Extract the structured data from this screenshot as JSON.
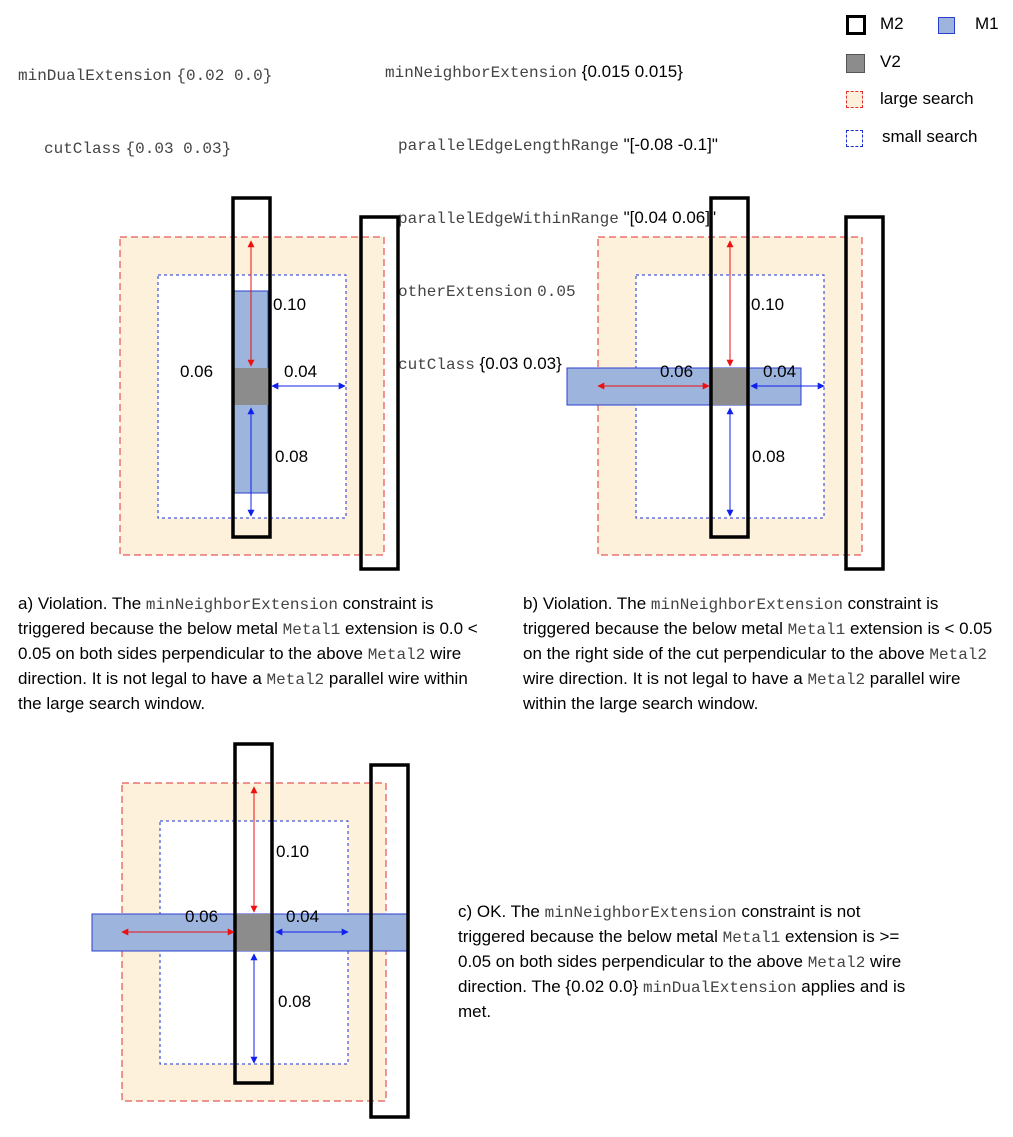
{
  "top_left_rule": {
    "line1_key": "minDualExtension",
    "line1_value": "{0.02 0.0}",
    "line2_key": "cutClass",
    "line2_value": "{0.03 0.03}"
  },
  "top_mid_rule": {
    "line1_key": "minNeighborExtension",
    "line1_value": "{0.015 0.015}",
    "line2_key": "parallelEdgeLengthRange",
    "line2_value": "\"[-0.08 -0.1]\"",
    "line3_key": "parallelEdgeWithinRange",
    "line3_value": "\"[0.04 0.06]\"",
    "line4_key": "otherExtension",
    "line4_value": "0.05",
    "line5_key": "cutClass",
    "line5_value": "{0.03 0.03}"
  },
  "legend": {
    "m2": "M2",
    "m1": "M1",
    "v2": "V2",
    "large_search": "large search",
    "small_search": "small search"
  },
  "colors": {
    "large_search_fill": "#fdf1dc",
    "large_search_border": "#e03030",
    "small_search_border": "#1a2fd0",
    "m1_fill": "#9db5dd",
    "m1_border": "#2a3fd0",
    "v2_fill": "#8c8c8c",
    "m2_border": "#000000",
    "arrow_red": "#ee1010",
    "arrow_blue": "#1020ee"
  },
  "diagram_a": {
    "label_top": "0.10",
    "label_left": "0.06",
    "label_right": "0.04",
    "label_bottom": "0.08"
  },
  "diagram_b": {
    "label_top": "0.10",
    "label_left": "0.06",
    "label_right": "0.04",
    "label_bottom": "0.08"
  },
  "diagram_c": {
    "label_top": "0.10",
    "label_left": "0.06",
    "label_right": "0.04",
    "label_bottom": "0.08"
  },
  "caption_a": {
    "p1": "a) Violation. The ",
    "code1": "minNeighborExtension",
    "p2": " constraint is triggered because the below metal ",
    "code2": "Metal1",
    "p3": " extension is 0.0 < 0.05 on both sides perpendicular to the above ",
    "code3": "Metal2",
    "p4": " wire direction. It is not legal to have a ",
    "code4": "Metal2",
    "p5": " parallel wire within the large search window."
  },
  "caption_b": {
    "p1": "b) Violation. The ",
    "code1": "minNeighborExtension",
    "p2": " constraint is triggered because the below metal ",
    "code2": "Metal1",
    "p3": " extension is < 0.05 on the right side of the cut perpendicular to the above ",
    "code3": "Metal2",
    "p4": " wire direction. It is not legal to have a ",
    "code4": "Metal2",
    "p5": " parallel wire within the large search window."
  },
  "caption_c": {
    "p1": "c) OK. The ",
    "code1": "minNeighborExtension",
    "p2": " constraint is not triggered because the below metal ",
    "code2": "Metal1",
    "p3": " extension is >= 0.05 on both sides perpendicular to the above ",
    "code3": "Metal2",
    "p4": " wire direction. The {0.02 0.0} ",
    "code4": "minDualExtension",
    "p5": " applies and is met."
  }
}
